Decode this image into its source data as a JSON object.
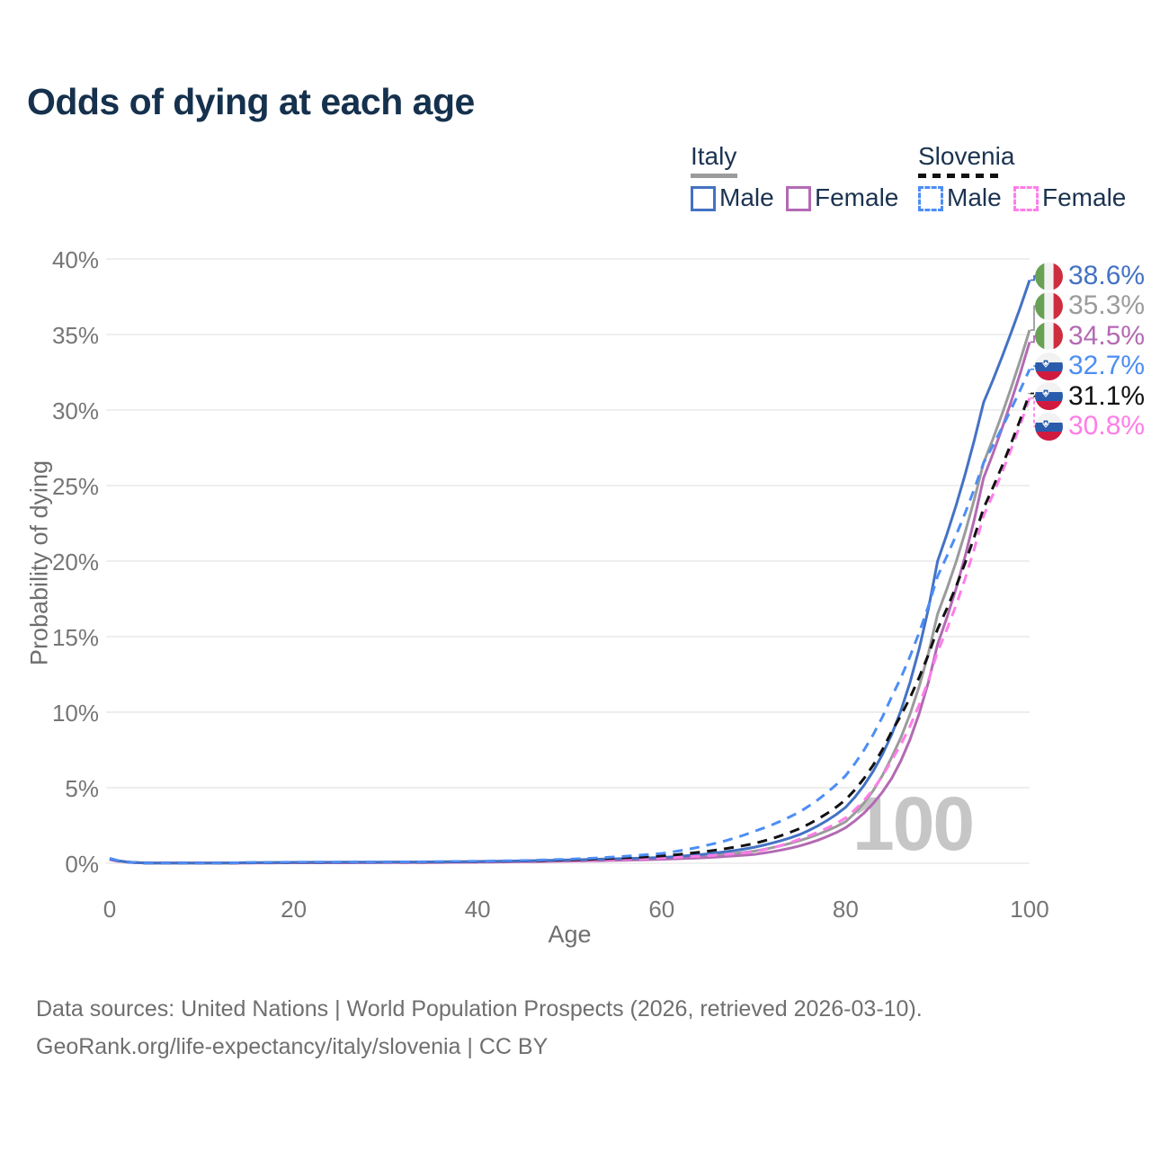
{
  "title": "Odds of dying at each age",
  "watermark": "100",
  "legend": {
    "groups": [
      {
        "label": "Italy",
        "line_style": "solid",
        "line_color": "#9b9b9b",
        "items": [
          {
            "label": "Male",
            "color": "#4472c4"
          },
          {
            "label": "Female",
            "color": "#b36ab3"
          }
        ]
      },
      {
        "label": "Slovenia",
        "line_style": "dashed",
        "line_color": "#111111",
        "items": [
          {
            "label": "Male",
            "color": "#4d8df5"
          },
          {
            "label": "Female",
            "color": "#ff7de8"
          }
        ]
      }
    ]
  },
  "footer": {
    "line1": "Data sources: United Nations | World Population Prospects (2026, retrieved 2026-03-10).",
    "line2": "GeoRank.org/life-expectancy/italy/slovenia | CC BY"
  },
  "chart_data": {
    "type": "line",
    "title": "Odds of dying at each age",
    "xlabel": "Age",
    "ylabel": "Probability of dying",
    "xlim": [
      0,
      100
    ],
    "ylim_percent": [
      0,
      40
    ],
    "x_ticks": [
      0,
      20,
      40,
      60,
      80,
      100
    ],
    "y_ticks_percent": [
      0,
      5,
      10,
      15,
      20,
      25,
      30,
      35,
      40
    ],
    "grid": "horizontal",
    "legend_position": "top-right",
    "ages": [
      0,
      5,
      10,
      15,
      20,
      25,
      30,
      35,
      40,
      45,
      50,
      55,
      60,
      65,
      70,
      75,
      80,
      85,
      90,
      95,
      100
    ],
    "series": [
      {
        "name": "Italy Male",
        "country": "Italy",
        "sex": "Male",
        "color": "#4472c4",
        "dash": "solid",
        "layer": 3,
        "end_label": "38.6%",
        "values": [
          0.32,
          0.01,
          0.01,
          0.04,
          0.06,
          0.07,
          0.08,
          0.09,
          0.12,
          0.16,
          0.22,
          0.3,
          0.38,
          0.62,
          1.05,
          1.9,
          3.7,
          8.5,
          20.0,
          30.5,
          38.6
        ]
      },
      {
        "name": "Italy",
        "country": "Italy",
        "sex": "Both",
        "color": "#9b9b9b",
        "dash": "solid",
        "layer": 1,
        "end_label": "35.3%",
        "values": [
          0.3,
          0.01,
          0.01,
          0.03,
          0.04,
          0.05,
          0.06,
          0.07,
          0.09,
          0.13,
          0.18,
          0.25,
          0.32,
          0.5,
          0.8,
          1.5,
          2.75,
          7.0,
          16.5,
          26.5,
          35.3
        ]
      },
      {
        "name": "Italy Female",
        "country": "Italy",
        "sex": "Female",
        "color": "#b36ab3",
        "dash": "solid",
        "layer": 2,
        "end_label": "34.5%",
        "values": [
          0.28,
          0.01,
          0.01,
          0.02,
          0.03,
          0.03,
          0.04,
          0.05,
          0.07,
          0.1,
          0.14,
          0.19,
          0.26,
          0.38,
          0.58,
          1.15,
          2.35,
          5.6,
          14.5,
          25.5,
          34.5
        ]
      },
      {
        "name": "Slovenia Male",
        "country": "Slovenia",
        "sex": "Male",
        "color": "#4d8df5",
        "dash": "dashed",
        "layer": 6,
        "end_label": "32.7%",
        "values": [
          0.3,
          0.01,
          0.01,
          0.04,
          0.07,
          0.08,
          0.08,
          0.1,
          0.13,
          0.18,
          0.27,
          0.42,
          0.65,
          1.2,
          2.1,
          3.4,
          5.8,
          11.0,
          19.0,
          26.5,
          32.7
        ]
      },
      {
        "name": "Slovenia",
        "country": "Slovenia",
        "sex": "Both",
        "color": "#111111",
        "dash": "dashed",
        "layer": 5,
        "end_label": "31.1%",
        "values": [
          0.28,
          0.01,
          0.01,
          0.03,
          0.05,
          0.06,
          0.07,
          0.08,
          0.11,
          0.15,
          0.22,
          0.33,
          0.48,
          0.8,
          1.3,
          2.3,
          4.2,
          8.7,
          15.5,
          23.5,
          31.1
        ]
      },
      {
        "name": "Slovenia Female",
        "country": "Slovenia",
        "sex": "Female",
        "color": "#ff7de8",
        "dash": "dashed",
        "layer": 4,
        "end_label": "30.8%",
        "values": [
          0.24,
          0.01,
          0.01,
          0.02,
          0.03,
          0.04,
          0.05,
          0.06,
          0.08,
          0.12,
          0.17,
          0.25,
          0.35,
          0.5,
          0.75,
          1.6,
          3.0,
          6.8,
          14.0,
          23.0,
          30.8
        ]
      }
    ]
  }
}
